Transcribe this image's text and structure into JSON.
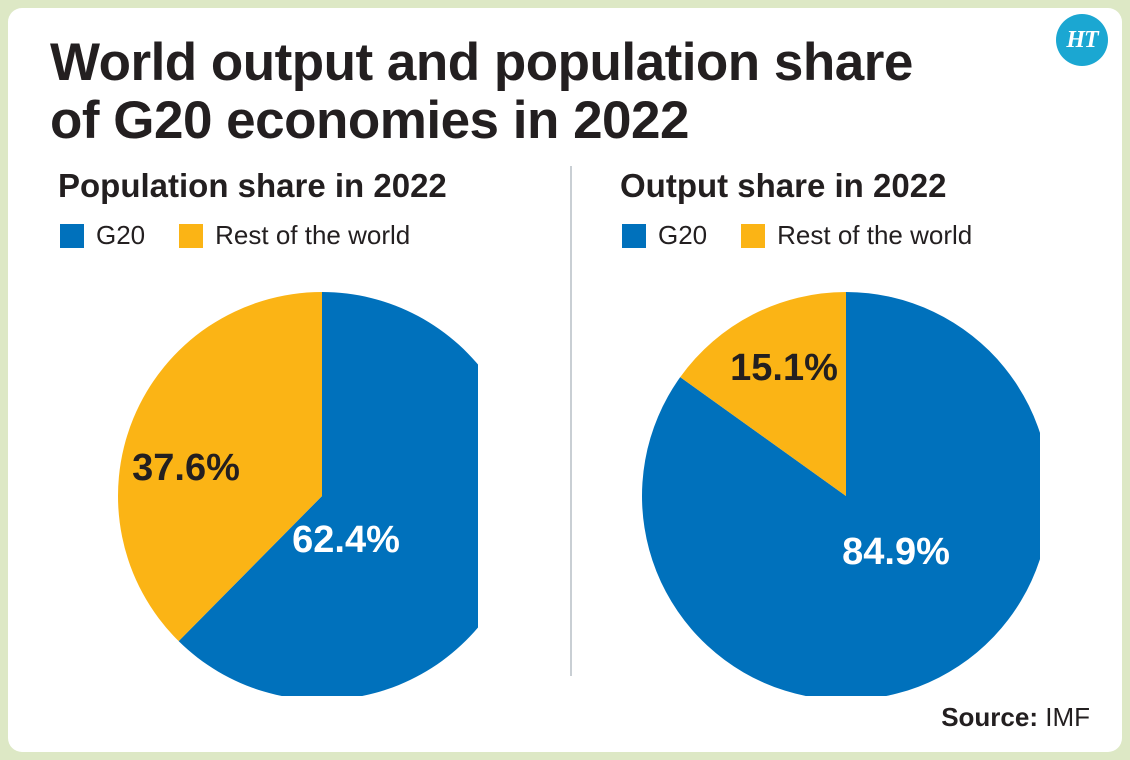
{
  "title_line1": "World output and population share",
  "title_line2": "of G20 economies in 2022",
  "logo_text": "HT",
  "source_label": "Source:",
  "source_value": "IMF",
  "colors": {
    "g20": "#0071bc",
    "rest": "#fbb415",
    "label_on_blue": "#ffffff",
    "label_on_yellow": "#231f20"
  },
  "chart_data": [
    {
      "type": "pie",
      "title": "Population share in 2022",
      "legend": [
        "G20",
        "Rest of the world"
      ],
      "slices": [
        {
          "name": "G20",
          "value": 62.4,
          "label": "62.4%"
        },
        {
          "name": "Rest of the world",
          "value": 37.6,
          "label": "37.6%"
        }
      ]
    },
    {
      "type": "pie",
      "title": "Output share in 2022",
      "legend": [
        "G20",
        "Rest of the world"
      ],
      "slices": [
        {
          "name": "G20",
          "value": 84.9,
          "label": "84.9%"
        },
        {
          "name": "Rest of the world",
          "value": 15.1,
          "label": "15.1%"
        }
      ]
    }
  ]
}
